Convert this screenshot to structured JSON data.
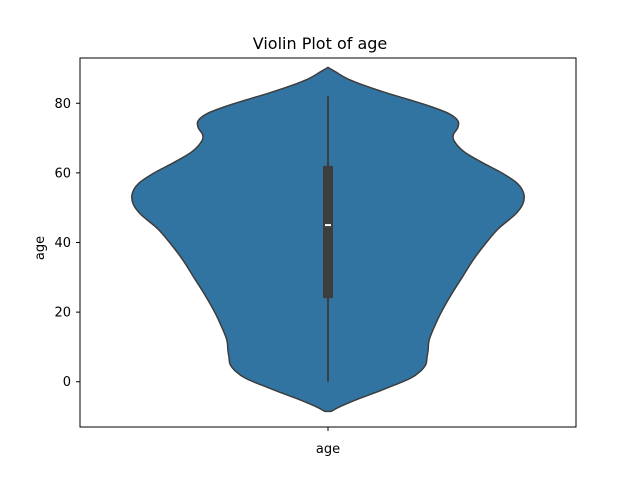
{
  "chart_data": {
    "type": "violin",
    "title": "Violin Plot of age",
    "xlabel": "",
    "ylabel": "age",
    "categories": [
      "age"
    ],
    "ylim": [
      -13,
      93
    ],
    "yticks": [
      0,
      20,
      40,
      60,
      80
    ],
    "grid": false,
    "colors": {
      "violin_fill": "#3274a1",
      "violin_edge": "#3d3d3d",
      "box": "#3d3d3d",
      "median": "#ffffff",
      "axes": "#000000"
    },
    "series": [
      {
        "category": "age",
        "stats": {
          "whisker_low": 0,
          "q1": 24,
          "median": 45,
          "q3": 62,
          "whisker_high": 82
        },
        "density": [
          {
            "y": -8.5,
            "w": 0.03
          },
          {
            "y": -7,
            "w": 0.12
          },
          {
            "y": -5,
            "w": 0.27
          },
          {
            "y": -3,
            "w": 0.44
          },
          {
            "y": -1,
            "w": 0.6
          },
          {
            "y": 1,
            "w": 0.75
          },
          {
            "y": 3,
            "w": 0.84
          },
          {
            "y": 5,
            "w": 0.89
          },
          {
            "y": 7,
            "w": 0.9
          },
          {
            "y": 9,
            "w": 0.91
          },
          {
            "y": 12,
            "w": 0.92
          },
          {
            "y": 16,
            "w": 0.97
          },
          {
            "y": 20,
            "w": 1.03
          },
          {
            "y": 25,
            "w": 1.12
          },
          {
            "y": 30,
            "w": 1.22
          },
          {
            "y": 35,
            "w": 1.32
          },
          {
            "y": 40,
            "w": 1.44
          },
          {
            "y": 44,
            "w": 1.55
          },
          {
            "y": 48,
            "w": 1.7
          },
          {
            "y": 51,
            "w": 1.77
          },
          {
            "y": 54,
            "w": 1.78
          },
          {
            "y": 57,
            "w": 1.72
          },
          {
            "y": 60,
            "w": 1.58
          },
          {
            "y": 63,
            "w": 1.4
          },
          {
            "y": 66,
            "w": 1.24
          },
          {
            "y": 69,
            "w": 1.15
          },
          {
            "y": 71,
            "w": 1.14
          },
          {
            "y": 73,
            "w": 1.18
          },
          {
            "y": 75,
            "w": 1.18
          },
          {
            "y": 77,
            "w": 1.1
          },
          {
            "y": 79,
            "w": 0.94
          },
          {
            "y": 81,
            "w": 0.74
          },
          {
            "y": 83,
            "w": 0.53
          },
          {
            "y": 85,
            "w": 0.34
          },
          {
            "y": 87,
            "w": 0.18
          },
          {
            "y": 89,
            "w": 0.07
          },
          {
            "y": 90.3,
            "w": 0.0
          }
        ]
      }
    ]
  }
}
